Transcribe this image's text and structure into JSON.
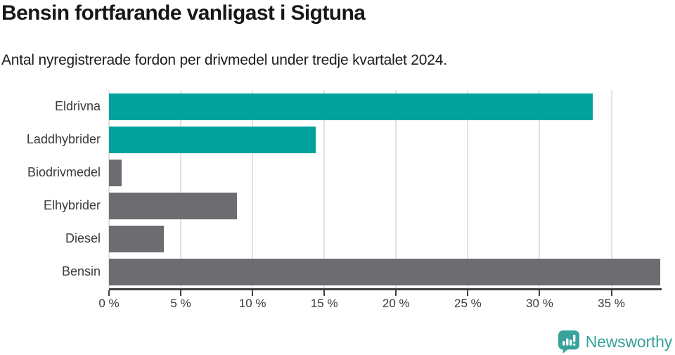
{
  "header": {
    "title": "Bensin fortfarande vanligast i Sigtuna",
    "subtitle": "Antal nyregistrerade fordon per drivmedel under tredje kvartalet 2024."
  },
  "chart_data": {
    "type": "bar",
    "orientation": "horizontal",
    "title": "Bensin fortfarande vanligast i Sigtuna",
    "subtitle": "Antal nyregistrerade fordon per drivmedel under tredje kvartalet 2024.",
    "xlabel": "",
    "ylabel": "",
    "unit": "%",
    "categories": [
      "Eldrivna",
      "Laddhybrider",
      "Biodrivmedel",
      "Elhybrider",
      "Diesel",
      "Bensin"
    ],
    "values": [
      33.7,
      14.4,
      0.9,
      8.9,
      3.8,
      38.4
    ],
    "bar_colors": [
      "#00a29b",
      "#00a29b",
      "#6c6c71",
      "#6c6c71",
      "#6c6c71",
      "#6c6c71"
    ],
    "xlim": [
      0,
      38.5
    ],
    "x_ticks": [
      0,
      5,
      10,
      15,
      20,
      25,
      30,
      35
    ],
    "x_tick_labels": [
      "0 %",
      "5 %",
      "10 %",
      "15 %",
      "20 %",
      "25 %",
      "30 %",
      "35 %"
    ],
    "grid": "vertical",
    "legend": "none"
  },
  "colors": {
    "accent": "#00a29b",
    "neutral": "#6c6c71",
    "gridline": "#e2e2e2",
    "axis": "#404040",
    "logo": "#38a29b"
  },
  "branding": {
    "logo_text": "Newsworthy",
    "logo_icon": "bar-chart-speech-bubble-icon"
  }
}
